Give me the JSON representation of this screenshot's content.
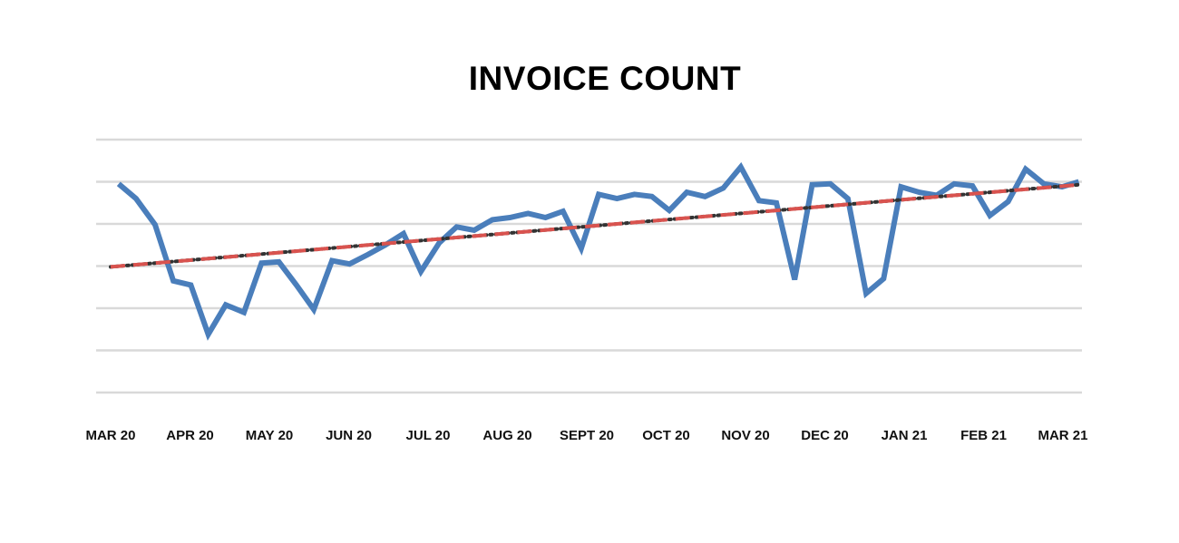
{
  "chart_data": {
    "type": "line",
    "title": "INVOICE COUNT",
    "xlabel": "",
    "ylabel": "",
    "ylim": [
      0,
      6
    ],
    "y_ticks_shown": false,
    "grid": true,
    "legend": "none",
    "x_tick_labels": [
      "MAR 20",
      "APR 20",
      "MAY 20",
      "JUN 20",
      "JUL 20",
      "AUG 20",
      "SEPT 20",
      "OCT 20",
      "NOV 20",
      "DEC 20",
      "JAN 21",
      "FEB 21",
      "MAR 21"
    ],
    "x_range": [
      0,
      12
    ],
    "series": [
      {
        "kind": "data",
        "color": "#4a7ebb",
        "x": [
          0.1,
          0.32,
          0.56,
          0.79,
          1.01,
          1.23,
          1.45,
          1.68,
          1.9,
          2.12,
          2.34,
          2.56,
          2.79,
          3.01,
          3.24,
          3.46,
          3.69,
          3.91,
          4.14,
          4.36,
          4.58,
          4.81,
          5.03,
          5.26,
          5.48,
          5.7,
          5.93,
          6.15,
          6.38,
          6.6,
          6.82,
          7.04,
          7.26,
          7.49,
          7.72,
          7.94,
          8.17,
          8.39,
          8.62,
          8.84,
          9.07,
          9.29,
          9.52,
          9.74,
          9.96,
          10.19,
          10.41,
          10.63,
          10.86,
          11.08,
          11.31,
          11.53,
          11.76,
          11.99,
          12.2
        ],
        "y": [
          4.95,
          4.6,
          3.98,
          2.65,
          2.55,
          1.38,
          2.08,
          1.9,
          3.07,
          3.1,
          2.55,
          1.97,
          3.13,
          3.05,
          3.27,
          3.5,
          3.77,
          2.87,
          3.55,
          3.93,
          3.85,
          4.1,
          4.15,
          4.25,
          4.15,
          4.3,
          3.42,
          4.7,
          4.6,
          4.7,
          4.65,
          4.32,
          4.75,
          4.65,
          4.85,
          5.35,
          4.55,
          4.5,
          2.68,
          4.93,
          4.95,
          4.6,
          2.35,
          2.7,
          4.88,
          4.75,
          4.68,
          4.95,
          4.9,
          4.2,
          4.53,
          5.3,
          4.95,
          4.88,
          5.0
        ]
      },
      {
        "kind": "trendline",
        "color": "#d9534f",
        "x": [
          0.0,
          12.2
        ],
        "y": [
          2.98,
          4.93
        ]
      }
    ]
  }
}
